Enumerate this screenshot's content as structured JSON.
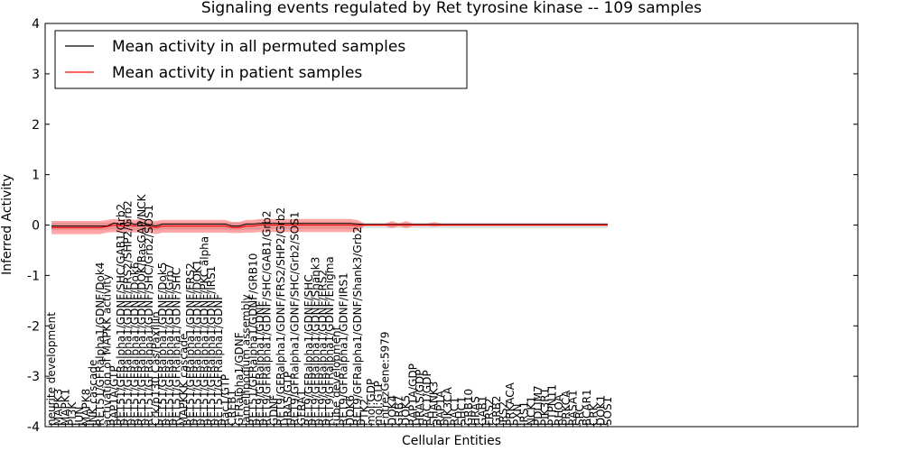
{
  "chart_data": {
    "type": "line",
    "title": "Signaling events regulated by Ret tyrosine kinase -- 109 samples",
    "xlabel": "Cellular Entities",
    "ylabel": "Inferred Activity",
    "ylim": [
      -4,
      4
    ],
    "yticks": [
      "-4",
      "-3",
      "-2",
      "-1",
      "0",
      "1",
      "2",
      "3",
      "4"
    ],
    "legend": {
      "placement": "top-left",
      "entries": [
        {
          "label": "Mean activity in all permuted samples",
          "color": "#000000"
        },
        {
          "label": "Mean activity in patient samples",
          "color": "#ff0000"
        }
      ]
    },
    "categories": [
      "neurite development",
      "MAPK3",
      "MAPK1",
      "PI3K",
      "JUN",
      "MAPK8",
      "JNK cascade",
      "RET51/GFRalpha1/GDNF/Dok4",
      "activation of MAPKK activity",
      "RAP1A/GTP",
      "RET51/GFRalpha1/GDNF/SHC/GAB1/Grb2",
      "RET51/GFRalpha1/GDNF/FRS2/SHP2/Grb2",
      "RET51/GFRalpha1/GDNF/Dok6",
      "RET51/GFRalpha1/GDNF/DOK/RasGAP/NCK",
      "RET51/GFRalpha1/GDNF/SHC/Grb2/SOS1",
      "Crk/p130 Cas/Paxillin",
      "RET51/GFRalpha1/GDNF/Dok5",
      "RET51/GFRalpha1/GDNF/Grb7",
      "RET51/GFRalpha1/GDNF/SHC",
      "MAPKKK cascade",
      "RET51/GFRalpha1/GDNF/FRS2",
      "RET51/GFRalpha1/GDNF/DOK1",
      "RET51/GFRalpha1/GDNF/PKC alpha",
      "RET51/GFRalpha1/GDNF/IRS1",
      "RET51/GFRalpha1/GDNF",
      "Rac1/GTP",
      "CREB1",
      "GFRalpha1/GDNF",
      "lamellipodium assembly",
      "RET51/GFRalpha1/GDNF/GRB10",
      "RET9/GFRalpha1/GDNF",
      "RET9/GFRalpha1/GDNF/SHC/GAB1/Grb2",
      "GDNF",
      "RET9/GFRalpha1/GDNF/FRS2/SHP2/Grb2",
      "HRAS/GTP",
      "RET9/GFRalpha1/GDNF/SHC/Grb2/SOS1",
      "GFRA1",
      "RET9/GFRalpha1/GDNF/SHC",
      "RET9/GFRalpha1/GDNF/Shank3",
      "RET9/GFRalpha1/GDNF/FRS2",
      "RET9/GFRalpha1/GDNF/Enigma",
      "tube development",
      "RET9/GFRalpha1/GDNF/IRS1",
      "DOK6",
      "RET9/GFRalpha1/GDNF/Shank3/Grb2",
      "PTK2",
      "mol:GDP",
      "mol:GTP",
      "EntrezGene:5979",
      "DOK4",
      "GRB7",
      "DOK5",
      "RAP1A/GDP",
      "HRAS/GDP",
      "RAC1/GDP",
      "SHANK3",
      "RAP1A",
      "PIK3CA",
      "RAC1",
      "SHC1",
      "GRB10",
      "HRAS",
      "GAB1",
      "FRS2",
      "GRB2",
      "IRS2",
      "PRKACA",
      "PXN",
      "IRS1",
      "NCK1",
      "PDLIM7",
      "PIK3R1",
      "PTPN11",
      "RHOA",
      "PRKCA",
      "RASA1",
      "SRC",
      "BCAR1",
      "CRK",
      "DOK1",
      "SOS1"
    ],
    "series": [
      {
        "name": "Mean activity in all permuted samples",
        "color": "#000000",
        "values": [
          -0.02,
          -0.02,
          -0.02,
          -0.02,
          -0.02,
          -0.02,
          -0.02,
          -0.02,
          -0.02,
          0.04,
          0.01,
          0.05,
          0.01,
          0.05,
          0.01,
          -0.02,
          0.02,
          0.02,
          0.02,
          0.02,
          0.02,
          0.02,
          0.02,
          0.02,
          0.02,
          0.02,
          -0.02,
          -0.02,
          0.02,
          0.02,
          0.03,
          0.03,
          0.03,
          0.03,
          0.03,
          0.03,
          0.03,
          0.03,
          0.03,
          0.03,
          0.03,
          0.03,
          0.03,
          0.03,
          0.02,
          0.01,
          0.01,
          0.01,
          0.01,
          0.01,
          0.01,
          0.01,
          0.01,
          0.01,
          0.01,
          0.01,
          0.01,
          0.01,
          0.01,
          0.01,
          0.01,
          0.01,
          0.01,
          0.01,
          0.01,
          0.01,
          0.01,
          0.01,
          0.01,
          0.01,
          0.01,
          0.01,
          0.01,
          0.01,
          0.01,
          0.01,
          0.01,
          0.01,
          0.01,
          0.01,
          0.01
        ]
      },
      {
        "name": "Mean activity in patient samples",
        "color": "#ff0000",
        "values": [
          -0.05,
          -0.05,
          -0.05,
          -0.05,
          -0.05,
          -0.05,
          -0.05,
          -0.05,
          -0.03,
          0.0,
          -0.02,
          0.0,
          -0.02,
          0.0,
          -0.02,
          -0.05,
          -0.02,
          -0.02,
          -0.02,
          -0.02,
          -0.02,
          -0.02,
          -0.02,
          -0.02,
          -0.02,
          -0.02,
          -0.05,
          -0.05,
          -0.02,
          -0.02,
          0.0,
          0.0,
          0.0,
          0.0,
          0.0,
          0.0,
          0.0,
          0.0,
          0.0,
          0.0,
          0.0,
          0.0,
          0.0,
          0.0,
          -0.01,
          0.0,
          0.0,
          0.0,
          0.0,
          0.0,
          0.0,
          0.0,
          0.0,
          0.0,
          0.0,
          0.0,
          0.0,
          0.0,
          0.0,
          0.0,
          0.0,
          0.0,
          0.0,
          0.0,
          0.0,
          0.0,
          0.0,
          0.0,
          0.0,
          0.0,
          0.0,
          0.0,
          0.0,
          0.0,
          0.0,
          0.0,
          0.0,
          0.0,
          0.0,
          0.0,
          0.0
        ]
      }
    ],
    "patient_band": {
      "upper": [
        0.08,
        0.08,
        0.08,
        0.08,
        0.08,
        0.08,
        0.08,
        0.08,
        0.1,
        0.12,
        0.1,
        0.12,
        0.1,
        0.12,
        0.1,
        0.08,
        0.1,
        0.1,
        0.1,
        0.1,
        0.1,
        0.1,
        0.1,
        0.1,
        0.1,
        0.1,
        0.06,
        0.06,
        0.1,
        0.1,
        0.12,
        0.12,
        0.12,
        0.12,
        0.12,
        0.12,
        0.12,
        0.12,
        0.12,
        0.12,
        0.12,
        0.12,
        0.12,
        0.12,
        0.1,
        0.03,
        0.03,
        0.03,
        0.03,
        0.08,
        0.03,
        0.08,
        0.03,
        0.03,
        0.03,
        0.06,
        0.03,
        0.03,
        0.03,
        0.03,
        0.03,
        0.03,
        0.03,
        0.03,
        0.03,
        0.03,
        0.03,
        0.03,
        0.03,
        0.03,
        0.03,
        0.03,
        0.03,
        0.03,
        0.03,
        0.03,
        0.03,
        0.03,
        0.03,
        0.03,
        0.03
      ],
      "lower": [
        -0.18,
        -0.18,
        -0.18,
        -0.18,
        -0.18,
        -0.18,
        -0.18,
        -0.18,
        -0.15,
        -0.14,
        -0.15,
        -0.14,
        -0.15,
        -0.14,
        -0.15,
        -0.18,
        -0.15,
        -0.15,
        -0.15,
        -0.15,
        -0.15,
        -0.15,
        -0.15,
        -0.15,
        -0.15,
        -0.15,
        -0.16,
        -0.16,
        -0.15,
        -0.15,
        -0.14,
        -0.14,
        -0.14,
        -0.14,
        -0.14,
        -0.14,
        -0.14,
        -0.14,
        -0.14,
        -0.14,
        -0.14,
        -0.14,
        -0.14,
        -0.14,
        -0.12,
        -0.02,
        -0.02,
        -0.02,
        -0.02,
        -0.06,
        -0.02,
        -0.06,
        -0.02,
        -0.02,
        -0.02,
        -0.03,
        -0.02,
        -0.02,
        -0.02,
        -0.02,
        -0.02,
        -0.02,
        -0.02,
        -0.02,
        -0.02,
        -0.02,
        -0.02,
        -0.02,
        -0.02,
        -0.02,
        -0.02,
        -0.02,
        -0.02,
        -0.02,
        -0.02,
        -0.02,
        -0.02,
        -0.02,
        -0.02,
        -0.02,
        -0.02
      ]
    },
    "permuted_band": {
      "upper": [
        0.05,
        0.05,
        0.05,
        0.05,
        0.05,
        0.05,
        0.05,
        0.05,
        0.05,
        0.06,
        0.05,
        0.06,
        0.05,
        0.06,
        0.05,
        0.05,
        0.05,
        0.05,
        0.05,
        0.05,
        0.05,
        0.05,
        0.05,
        0.05,
        0.05,
        0.05,
        0.05,
        0.05,
        0.05,
        0.05,
        0.06,
        0.06,
        0.06,
        0.06,
        0.06,
        0.06,
        0.06,
        0.06,
        0.06,
        0.06,
        0.06,
        0.06,
        0.06,
        0.06,
        0.05,
        0.04,
        0.04,
        0.04,
        0.04,
        0.04,
        0.04,
        0.04,
        0.04,
        0.04,
        0.04,
        0.04,
        0.04,
        0.04,
        0.04,
        0.04,
        0.04,
        0.04,
        0.04,
        0.04,
        0.04,
        0.04,
        0.04,
        0.04,
        0.04,
        0.04,
        0.04,
        0.04,
        0.04,
        0.04,
        0.04,
        0.04,
        0.04,
        0.04,
        0.04,
        0.04,
        0.04
      ],
      "lower": [
        -0.1,
        -0.1,
        -0.1,
        -0.1,
        -0.1,
        -0.1,
        -0.1,
        -0.1,
        -0.1,
        -0.08,
        -0.1,
        -0.08,
        -0.1,
        -0.08,
        -0.1,
        -0.1,
        -0.09,
        -0.09,
        -0.09,
        -0.09,
        -0.09,
        -0.09,
        -0.09,
        -0.09,
        -0.09,
        -0.09,
        -0.1,
        -0.1,
        -0.09,
        -0.09,
        -0.08,
        -0.08,
        -0.08,
        -0.08,
        -0.08,
        -0.08,
        -0.08,
        -0.08,
        -0.08,
        -0.08,
        -0.08,
        -0.08,
        -0.08,
        -0.08,
        -0.08,
        -0.06,
        -0.06,
        -0.06,
        -0.06,
        -0.06,
        -0.06,
        -0.06,
        -0.06,
        -0.06,
        -0.06,
        -0.06,
        -0.06,
        -0.06,
        -0.06,
        -0.06,
        -0.06,
        -0.06,
        -0.06,
        -0.06,
        -0.06,
        -0.06,
        -0.06,
        -0.06,
        -0.06,
        -0.06,
        -0.06,
        -0.06,
        -0.06,
        -0.06,
        -0.06,
        -0.06,
        -0.06,
        -0.06,
        -0.06,
        -0.06,
        -0.06
      ]
    }
  }
}
